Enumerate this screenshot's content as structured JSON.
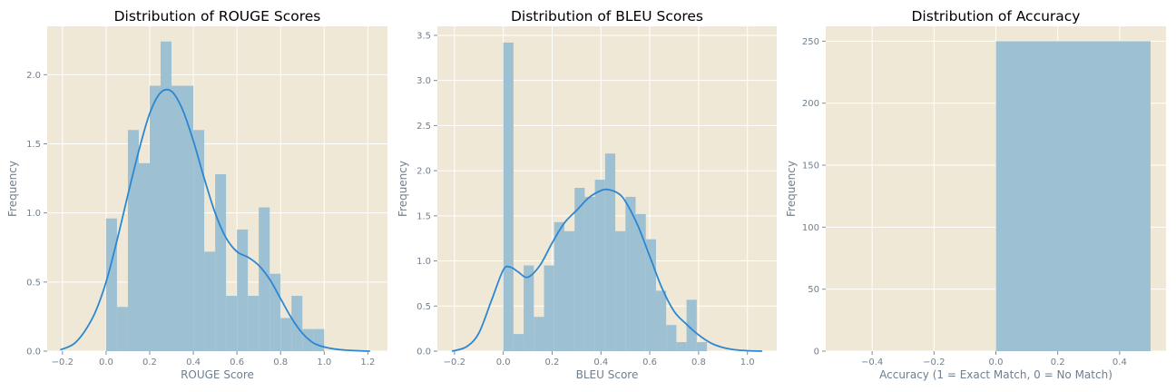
{
  "colors": {
    "plot_background": "#efe8d6",
    "grid": "#ffffff",
    "bar_fill": "#9ec0d3",
    "kde_line": "#2b87d1",
    "axis_text": "#6f7f8e",
    "title_text": "#000000"
  },
  "chart_data": [
    {
      "type": "histogram",
      "title": "Distribution of ROUGE Scores",
      "xlabel": "ROUGE Score",
      "ylabel": "Frequency",
      "xlim": [
        -0.27,
        1.29
      ],
      "ylim": [
        0,
        2.35
      ],
      "grid": true,
      "xticks": [
        -0.2,
        0.0,
        0.2,
        0.4,
        0.6,
        0.8,
        1.0,
        1.2
      ],
      "xtick_labels": [
        "−0.2",
        "0.0",
        "0.2",
        "0.4",
        "0.6",
        "0.8",
        "1.0",
        "1.2"
      ],
      "yticks": [
        0,
        0.5,
        1.0,
        1.5,
        2.0
      ],
      "ytick_labels": [
        "0.0",
        "0.5",
        "1.0",
        "1.5",
        "2.0"
      ],
      "bins": {
        "start": 0.0,
        "width": 0.05,
        "heights": [
          0.96,
          0.32,
          1.6,
          1.36,
          1.92,
          2.24,
          1.92,
          1.92,
          1.6,
          0.72,
          1.28,
          0.4,
          0.88,
          0.4,
          1.04,
          0.56,
          0.24,
          0.4,
          0.16,
          0.16
        ]
      },
      "kde": {
        "x": [
          -0.21,
          -0.15,
          -0.1,
          -0.05,
          0.0,
          0.05,
          0.1,
          0.15,
          0.2,
          0.25,
          0.3,
          0.35,
          0.4,
          0.45,
          0.5,
          0.55,
          0.6,
          0.65,
          0.7,
          0.75,
          0.8,
          0.85,
          0.9,
          0.95,
          1.0,
          1.05,
          1.1,
          1.15,
          1.21
        ],
        "y": [
          0.01,
          0.05,
          0.14,
          0.28,
          0.5,
          0.8,
          1.13,
          1.45,
          1.72,
          1.87,
          1.88,
          1.75,
          1.52,
          1.25,
          1.0,
          0.82,
          0.72,
          0.68,
          0.62,
          0.52,
          0.38,
          0.24,
          0.13,
          0.06,
          0.03,
          0.015,
          0.007,
          0.003,
          0.0
        ]
      }
    },
    {
      "type": "histogram",
      "title": "Distribution of BLEU Scores",
      "xlabel": "BLEU Score",
      "ylabel": "Frequency",
      "xlim": [
        -0.27,
        1.12
      ],
      "ylim": [
        0,
        3.6
      ],
      "grid": true,
      "xticks": [
        -0.2,
        0.0,
        0.2,
        0.4,
        0.6,
        0.8,
        1.0
      ],
      "xtick_labels": [
        "−0.2",
        "0.0",
        "0.2",
        "0.4",
        "0.6",
        "0.8",
        "1.0"
      ],
      "yticks": [
        0,
        0.5,
        1.0,
        1.5,
        2.0,
        2.5,
        3.0,
        3.5
      ],
      "ytick_labels": [
        "0.0",
        "0.5",
        "1.0",
        "1.5",
        "2.0",
        "2.5",
        "3.0",
        "3.5"
      ],
      "bins": {
        "start": 0.0,
        "width": 0.0417,
        "heights": [
          3.42,
          0.19,
          0.95,
          0.38,
          0.95,
          1.43,
          1.33,
          1.81,
          1.71,
          1.9,
          2.19,
          1.33,
          1.71,
          1.52,
          1.24,
          0.67,
          0.29,
          0.1,
          0.57,
          0.1
        ]
      },
      "kde": {
        "x": [
          -0.21,
          -0.15,
          -0.1,
          -0.05,
          0.0,
          0.03,
          0.06,
          0.1,
          0.15,
          0.2,
          0.25,
          0.3,
          0.35,
          0.4,
          0.43,
          0.47,
          0.5,
          0.55,
          0.6,
          0.65,
          0.7,
          0.75,
          0.8,
          0.85,
          0.9,
          0.95,
          1.0,
          1.06
        ],
        "y": [
          0.0,
          0.05,
          0.2,
          0.55,
          0.9,
          0.93,
          0.88,
          0.82,
          0.95,
          1.2,
          1.42,
          1.56,
          1.7,
          1.78,
          1.79,
          1.75,
          1.66,
          1.4,
          1.05,
          0.7,
          0.44,
          0.3,
          0.18,
          0.09,
          0.04,
          0.015,
          0.005,
          0.0
        ]
      }
    },
    {
      "type": "histogram",
      "title": "Distribution of Accuracy",
      "xlabel": "Accuracy (1 = Exact Match, 0 = No Match)",
      "ylabel": "Frequency",
      "xlim": [
        -0.55,
        0.55
      ],
      "ylim": [
        0,
        262
      ],
      "grid": true,
      "xticks": [
        -0.4,
        -0.2,
        0.0,
        0.2,
        0.4
      ],
      "xtick_labels": [
        "−0.4",
        "−0.2",
        "0.0",
        "0.2",
        "0.4"
      ],
      "yticks": [
        0,
        50,
        100,
        150,
        200,
        250
      ],
      "ytick_labels": [
        "0",
        "50",
        "100",
        "150",
        "200",
        "250"
      ],
      "bins": {
        "start": 0.0,
        "width": 0.5,
        "heights": [
          250
        ]
      }
    }
  ]
}
